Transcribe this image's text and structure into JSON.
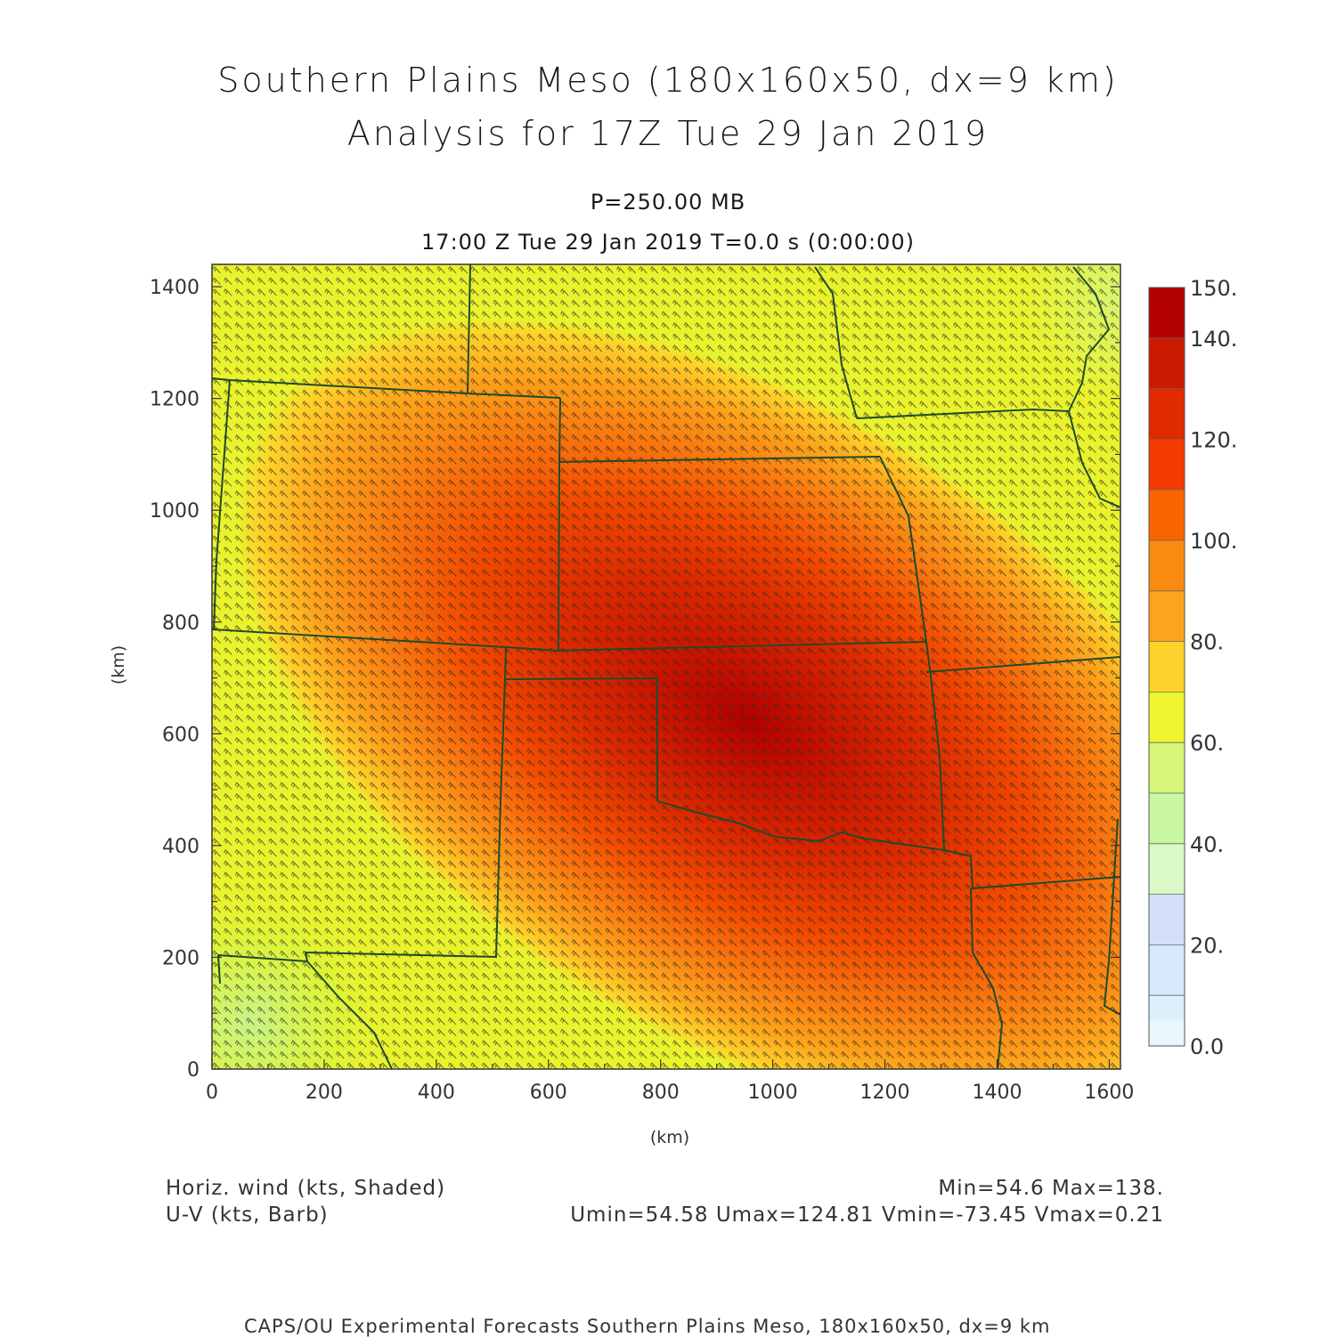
{
  "title_line1": "Southern Plains Meso (180x160x50, dx=9 km)",
  "title_line2": "Analysis for 17Z Tue 29 Jan 2019",
  "level": "P=250.00 MB",
  "valid_time": "17:00 Z Tue 29 Jan 2019    T=0.0 s (0:00:00)",
  "x_label": "(km)",
  "y_label": "(km)",
  "x_ticks": [
    "0",
    "200",
    "400",
    "600",
    "800",
    "1000",
    "1200",
    "1400",
    "1600"
  ],
  "y_ticks": [
    "0",
    "200",
    "400",
    "600",
    "800",
    "1000",
    "1200",
    "1400"
  ],
  "colorbar": {
    "labels": [
      "150.",
      "140.",
      "120.",
      "100.",
      "80.",
      "60.",
      "40.",
      "20.",
      "0.0"
    ],
    "colors": [
      "#b30000",
      "#cc1a00",
      "#e02a00",
      "#f53a00",
      "#fa6400",
      "#fb8a10",
      "#fca41c",
      "#fed22a",
      "#ecf52e",
      "#d6f579",
      "#c8f7a0",
      "#d9fac6",
      "#d5dff9",
      "#d6e8fc",
      "#dcf0fc",
      "#e9f7fd"
    ]
  },
  "footer": {
    "field1": "Horiz. wind (kts, Shaded)",
    "field2": "U-V (kts, Barb)",
    "minmax": "Min=54.6  Max=138.",
    "uv_stats": "Umin=54.58  Umax=124.81  Vmin=-73.45  Vmax=0.21",
    "credit": "CAPS/OU Experimental Forecasts   Southern Plains Meso, 180x160x50, dx=9 km"
  },
  "chart_data": {
    "type": "heatmap",
    "x_range_km": [
      0,
      1620
    ],
    "y_range_km": [
      0,
      1440
    ],
    "field": "Horizontal wind speed (kts)",
    "min": 54.6,
    "max": 138,
    "core_center_km": [
      950,
      700
    ],
    "barb_grid_spacing_km": 9,
    "barb_direction": "from northwest"
  }
}
